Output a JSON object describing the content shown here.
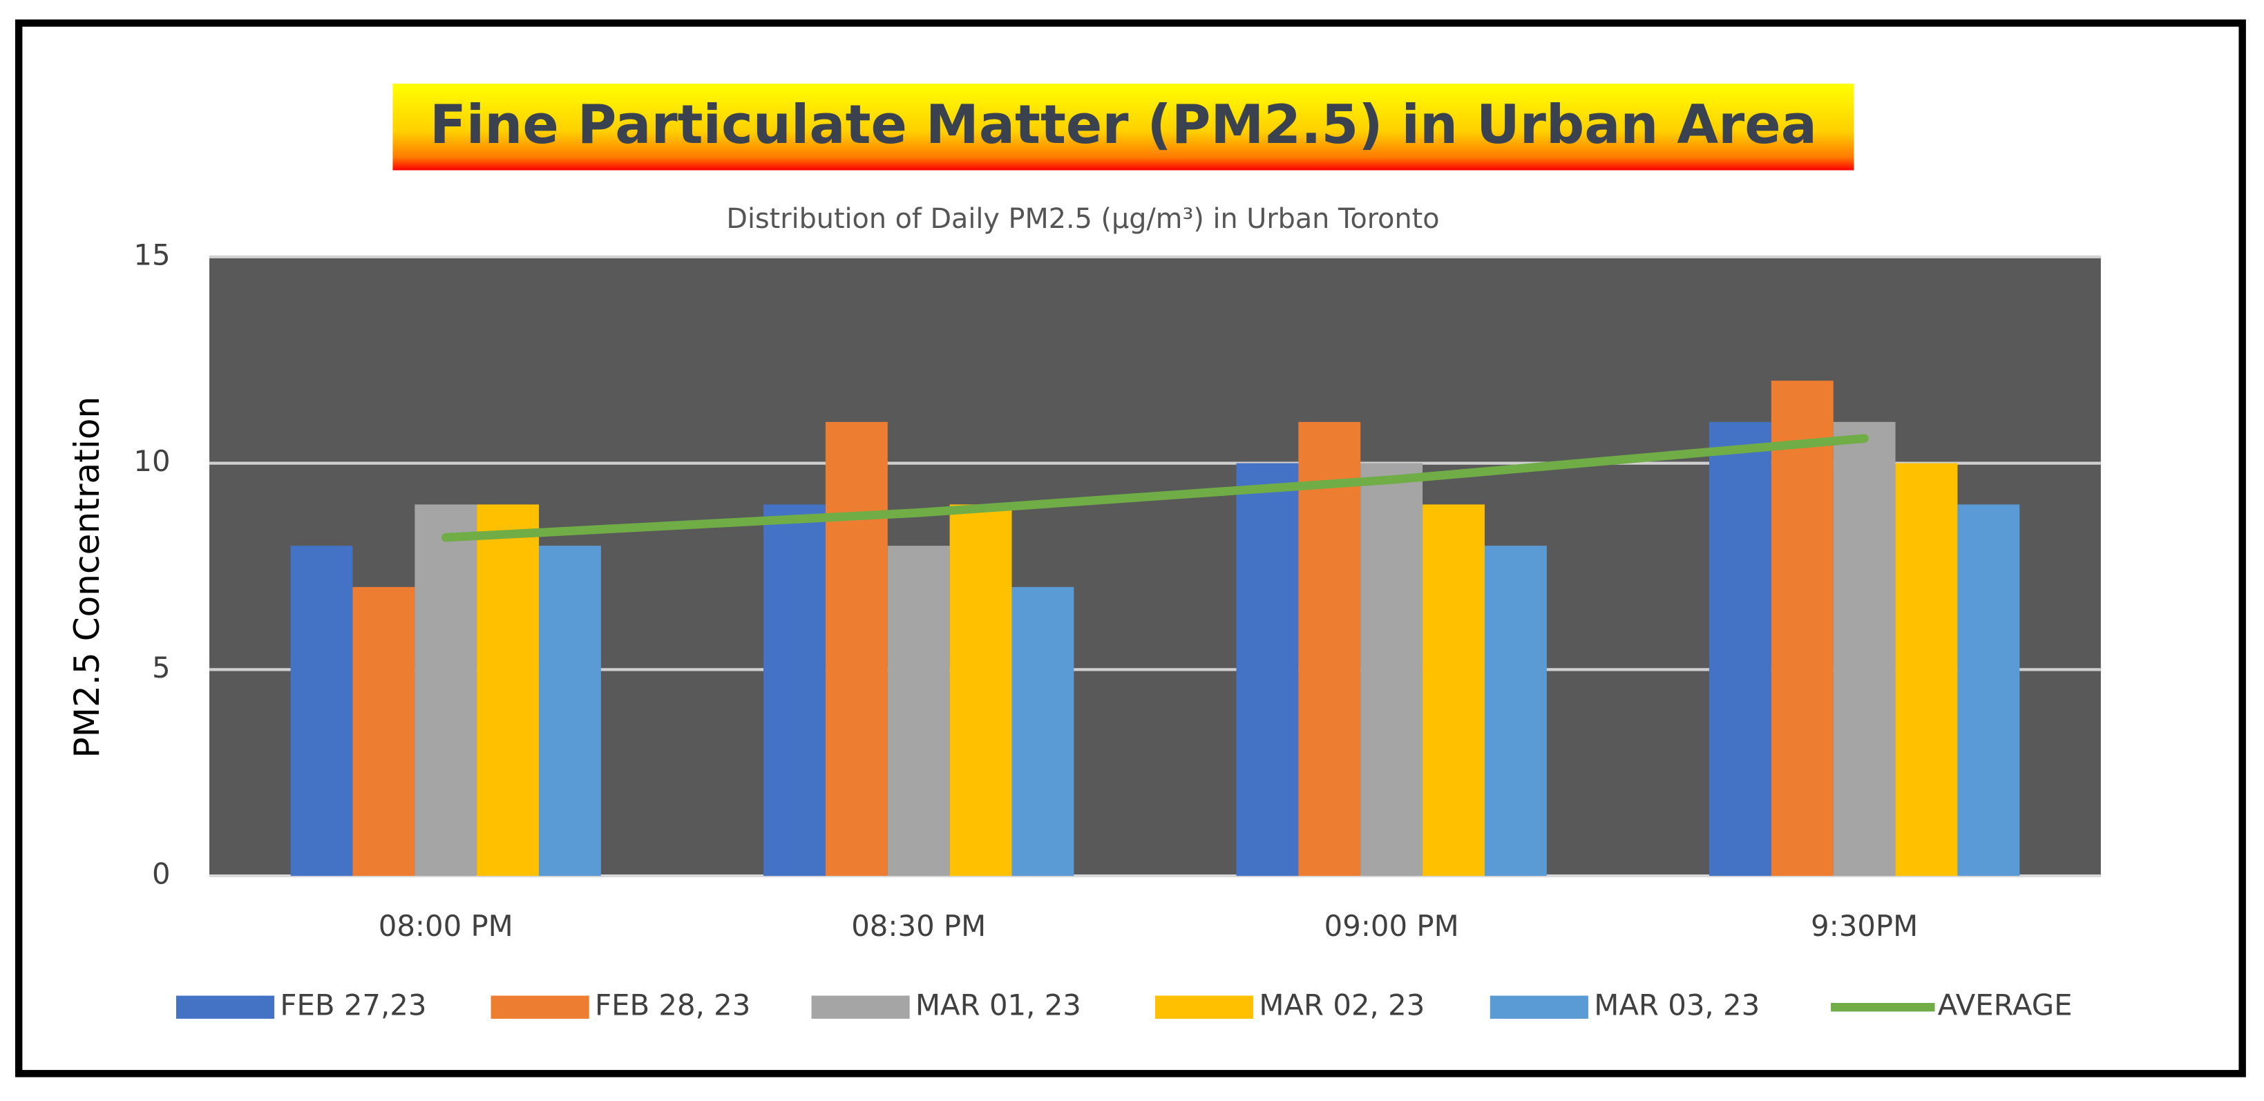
{
  "chart_data": {
    "type": "bar",
    "title": "Fine Particulate Matter (PM2.5) in Urban Area",
    "subtitle": "Distribution of Daily PM2.5 (µg/m³) in Urban Toronto",
    "y_label": "PM2.5 Concentration",
    "categories": [
      "08:00 PM",
      "08:30 PM",
      "09:00 PM",
      "9:30PM"
    ],
    "series": [
      {
        "name": "FEB 27,23",
        "color": "#4472c4",
        "values": [
          8,
          9,
          10,
          11
        ]
      },
      {
        "name": "FEB 28, 23",
        "color": "#ed7d31",
        "values": [
          7,
          11,
          11,
          12
        ]
      },
      {
        "name": "MAR 01, 23",
        "color": "#a5a5a5",
        "values": [
          9,
          8,
          10,
          11
        ]
      },
      {
        "name": "MAR 02, 23",
        "color": "#ffc000",
        "values": [
          9,
          9,
          9,
          10
        ]
      },
      {
        "name": "MAR 03, 23",
        "color": "#5b9bd5",
        "values": [
          8,
          7,
          8,
          9
        ]
      },
      {
        "name": "AVERAGE",
        "color": "#70ad47",
        "type": "line",
        "values": [
          8.2,
          8.8,
          9.6,
          10.6
        ]
      }
    ],
    "ylim": [
      0,
      15
    ],
    "yticks": [
      0,
      5,
      10,
      15
    ],
    "grid": true,
    "legend": "bottom"
  }
}
